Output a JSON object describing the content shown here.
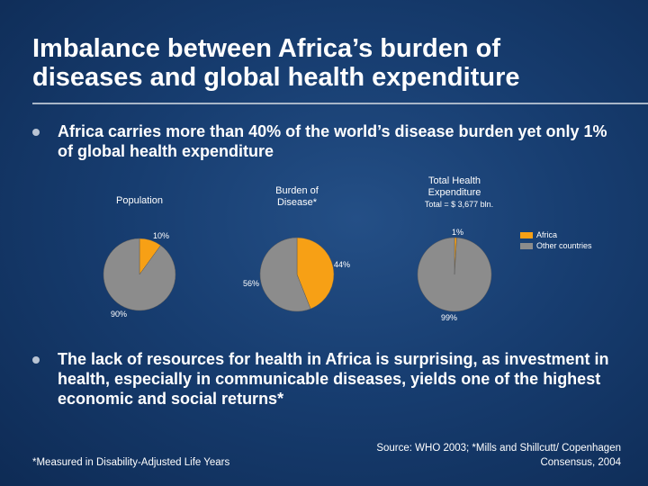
{
  "slide": {
    "title_line1": "Imbalance between Africa’s burden of",
    "title_line2": "diseases and global health expenditure",
    "bullet1": "Africa carries more than 40% of the world’s disease burden yet only 1% of global health expenditure",
    "bullet2": "The lack of resources for health in Africa is surprising, as investment in health, especially in communicable diseases, yields one of the highest economic and social returns*",
    "footnote": "*Measured in Disability-Adjusted Life Years",
    "source": "Source: WHO 2003; *Mills and Shillcutt/ Copenhagen Consensus, 2004"
  },
  "colors": {
    "africa": "#f7a015",
    "other": "#8c8c8c"
  },
  "chart_data": {
    "type": "pie",
    "legend": {
      "placement": "right",
      "entries": [
        "Africa",
        "Other countries"
      ]
    },
    "charts": [
      {
        "title": "Population",
        "subtitle": "",
        "slices": [
          {
            "label": "Africa",
            "value": 10,
            "text": "10%"
          },
          {
            "label": "Other countries",
            "value": 90,
            "text": "90%"
          }
        ]
      },
      {
        "title": "Burden of Disease*",
        "subtitle": "",
        "slices": [
          {
            "label": "Africa",
            "value": 44,
            "text": "44%"
          },
          {
            "label": "Other countries",
            "value": 56,
            "text": "56%"
          }
        ]
      },
      {
        "title": "Total Health Expenditure",
        "subtitle": "Total = $ 3,677 bln.",
        "slices": [
          {
            "label": "Africa",
            "value": 1,
            "text": "1%"
          },
          {
            "label": "Other countries",
            "value": 99,
            "text": "99%"
          }
        ]
      }
    ]
  }
}
